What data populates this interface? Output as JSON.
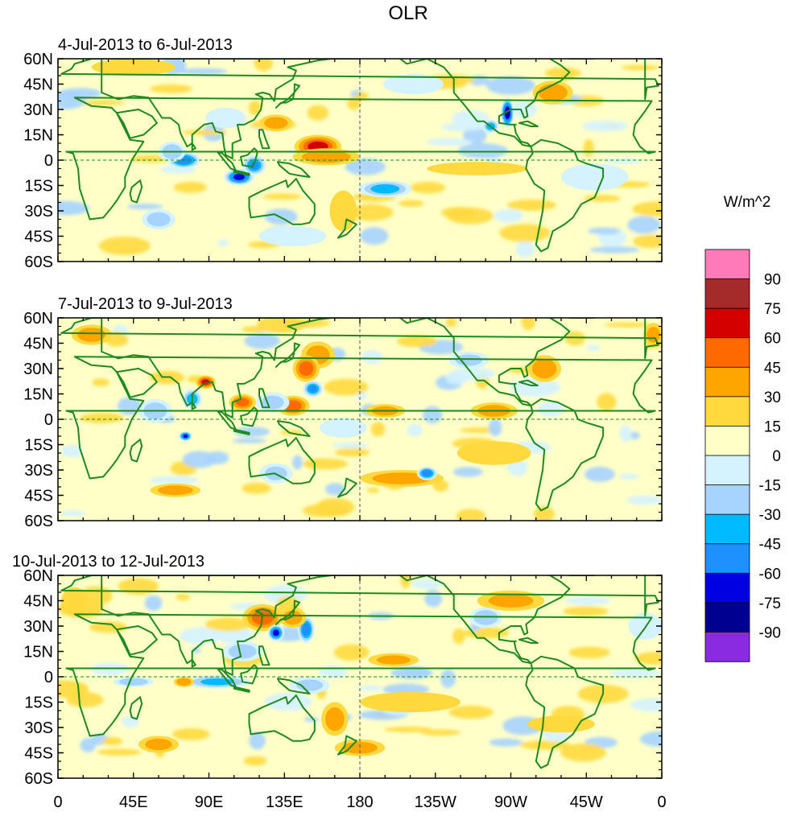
{
  "title": "OLR",
  "units_label": "W/m^2",
  "panels": [
    {
      "subtitle": "4-Jul-2013 to 6-Jul-2013"
    },
    {
      "subtitle": "7-Jul-2013 to 9-Jul-2013"
    },
    {
      "subtitle": "10-Jul-2013 to 12-Jul-2013"
    }
  ],
  "lat_ticks": [
    "60N",
    "45N",
    "30N",
    "15N",
    "0",
    "15S",
    "30S",
    "45S",
    "60S"
  ],
  "lon_ticks": [
    "0",
    "45E",
    "90E",
    "135E",
    "180",
    "135W",
    "90W",
    "45W",
    "0"
  ],
  "colorbar": {
    "labels": [
      "90",
      "75",
      "60",
      "45",
      "30",
      "15",
      "0",
      "-15",
      "-30",
      "-45",
      "-60",
      "-75",
      "-90"
    ],
    "colors": [
      "#ff7ab8",
      "#a52a2a",
      "#d40000",
      "#ff6a00",
      "#ffa500",
      "#ffd93d",
      "#ffffc8",
      "#d4f2ff",
      "#a6d3ff",
      "#00baff",
      "#1e90ff",
      "#0000e0",
      "#000090",
      "#8a2be2"
    ]
  },
  "colors": {
    "coast": "#1e8a1e",
    "background": "#ffffc8"
  },
  "map_data": {
    "lon_range": [
      0,
      360
    ],
    "lat_range": [
      -60,
      60
    ],
    "features": [
      [
        {
          "lon": 75,
          "lat": 0,
          "v": -70,
          "rx": 10,
          "ry": 5
        },
        {
          "lon": 108,
          "lat": -10,
          "v": -80,
          "rx": 9,
          "ry": 5
        },
        {
          "lon": 117,
          "lat": -3,
          "v": -60,
          "rx": 7,
          "ry": 6
        },
        {
          "lon": 155,
          "lat": 8,
          "v": 65,
          "rx": 14,
          "ry": 7
        },
        {
          "lon": 160,
          "lat": 2,
          "v": 40,
          "rx": 20,
          "ry": 5
        },
        {
          "lon": 130,
          "lat": 22,
          "v": 35,
          "rx": 10,
          "ry": 5
        },
        {
          "lon": 195,
          "lat": -17,
          "v": -50,
          "rx": 16,
          "ry": 5
        },
        {
          "lon": 268,
          "lat": 28,
          "v": -90,
          "rx": 4,
          "ry": 9
        },
        {
          "lon": 258,
          "lat": 20,
          "v": -50,
          "rx": 5,
          "ry": 4
        },
        {
          "lon": 295,
          "lat": 40,
          "v": 40,
          "rx": 12,
          "ry": 7
        },
        {
          "lon": 68,
          "lat": 5,
          "v": -40,
          "rx": 8,
          "ry": 6
        },
        {
          "lon": 250,
          "lat": -5,
          "v": 25,
          "rx": 30,
          "ry": 4
        },
        {
          "lon": 170,
          "lat": -30,
          "v": 25,
          "rx": 8,
          "ry": 12
        },
        {
          "lon": 60,
          "lat": -35,
          "v": -35,
          "rx": 10,
          "ry": 6
        },
        {
          "lon": 45,
          "lat": 55,
          "v": 25,
          "rx": 25,
          "ry": 5
        },
        {
          "lon": 212,
          "lat": 45,
          "v": -20,
          "rx": 18,
          "ry": 6
        },
        {
          "lon": 320,
          "lat": -10,
          "v": -15,
          "rx": 20,
          "ry": 8
        },
        {
          "lon": 100,
          "lat": 25,
          "v": -25,
          "rx": 12,
          "ry": 6
        },
        {
          "lon": 140,
          "lat": -45,
          "v": -20,
          "rx": 20,
          "ry": 6
        }
      ],
      [
        {
          "lon": 20,
          "lat": 50,
          "v": 35,
          "rx": 12,
          "ry": 6
        },
        {
          "lon": 155,
          "lat": 38,
          "v": 35,
          "rx": 10,
          "ry": 8
        },
        {
          "lon": 148,
          "lat": 30,
          "v": 50,
          "rx": 8,
          "ry": 8
        },
        {
          "lon": 152,
          "lat": 18,
          "v": -60,
          "rx": 6,
          "ry": 5
        },
        {
          "lon": 88,
          "lat": 22,
          "v": 60,
          "rx": 6,
          "ry": 4
        },
        {
          "lon": 110,
          "lat": 10,
          "v": 45,
          "rx": 8,
          "ry": 5
        },
        {
          "lon": 140,
          "lat": 8,
          "v": 50,
          "rx": 10,
          "ry": 6
        },
        {
          "lon": 80,
          "lat": 12,
          "v": -50,
          "rx": 6,
          "ry": 6
        },
        {
          "lon": 128,
          "lat": 10,
          "v": -30,
          "rx": 10,
          "ry": 6
        },
        {
          "lon": 76,
          "lat": -10,
          "v": -75,
          "rx": 4,
          "ry": 3
        },
        {
          "lon": 205,
          "lat": -35,
          "v": 35,
          "rx": 25,
          "ry": 5
        },
        {
          "lon": 220,
          "lat": -32,
          "v": -70,
          "rx": 6,
          "ry": 4
        },
        {
          "lon": 195,
          "lat": 5,
          "v": 30,
          "rx": 12,
          "ry": 4
        },
        {
          "lon": 260,
          "lat": 5,
          "v": 35,
          "rx": 14,
          "ry": 5
        },
        {
          "lon": 290,
          "lat": 30,
          "v": 40,
          "rx": 10,
          "ry": 8
        },
        {
          "lon": 260,
          "lat": -20,
          "v": 25,
          "rx": 22,
          "ry": 7
        },
        {
          "lon": 70,
          "lat": -42,
          "v": 35,
          "rx": 15,
          "ry": 4
        },
        {
          "lon": 355,
          "lat": 50,
          "v": 30,
          "rx": 6,
          "ry": 7
        },
        {
          "lon": 58,
          "lat": 5,
          "v": -35,
          "rx": 10,
          "ry": 7
        },
        {
          "lon": 130,
          "lat": -32,
          "v": -30,
          "rx": 10,
          "ry": 6
        },
        {
          "lon": 245,
          "lat": 35,
          "v": -30,
          "rx": 12,
          "ry": 5
        },
        {
          "lon": 170,
          "lat": -5,
          "v": -20,
          "rx": 14,
          "ry": 6
        }
      ],
      [
        {
          "lon": 122,
          "lat": 35,
          "v": 50,
          "rx": 12,
          "ry": 8
        },
        {
          "lon": 130,
          "lat": 26,
          "v": -80,
          "rx": 5,
          "ry": 5
        },
        {
          "lon": 148,
          "lat": 28,
          "v": -70,
          "rx": 5,
          "ry": 8
        },
        {
          "lon": 140,
          "lat": 35,
          "v": 35,
          "rx": 8,
          "ry": 6
        },
        {
          "lon": 110,
          "lat": 15,
          "v": -35,
          "rx": 12,
          "ry": 6
        },
        {
          "lon": 95,
          "lat": -3,
          "v": -45,
          "rx": 20,
          "ry": 4
        },
        {
          "lon": 45,
          "lat": -3,
          "v": -40,
          "rx": 12,
          "ry": 3
        },
        {
          "lon": 75,
          "lat": -3,
          "v": 40,
          "rx": 6,
          "ry": 3
        },
        {
          "lon": 270,
          "lat": 45,
          "v": 30,
          "rx": 20,
          "ry": 6
        },
        {
          "lon": 200,
          "lat": 10,
          "v": 30,
          "rx": 15,
          "ry": 4
        },
        {
          "lon": 255,
          "lat": 35,
          "v": -40,
          "rx": 10,
          "ry": 6
        },
        {
          "lon": 165,
          "lat": -25,
          "v": 35,
          "rx": 8,
          "ry": 10
        },
        {
          "lon": 180,
          "lat": -42,
          "v": 35,
          "rx": 15,
          "ry": 5
        },
        {
          "lon": 300,
          "lat": -28,
          "v": 25,
          "rx": 20,
          "ry": 5
        },
        {
          "lon": 60,
          "lat": -40,
          "v": 30,
          "rx": 12,
          "ry": 5
        },
        {
          "lon": 210,
          "lat": -15,
          "v": 20,
          "rx": 30,
          "ry": 6
        },
        {
          "lon": 10,
          "lat": 45,
          "v": 25,
          "rx": 8,
          "ry": 8
        },
        {
          "lon": 150,
          "lat": -5,
          "v": -30,
          "rx": 12,
          "ry": 5
        },
        {
          "lon": 350,
          "lat": 30,
          "v": -20,
          "rx": 10,
          "ry": 8
        }
      ]
    ]
  }
}
